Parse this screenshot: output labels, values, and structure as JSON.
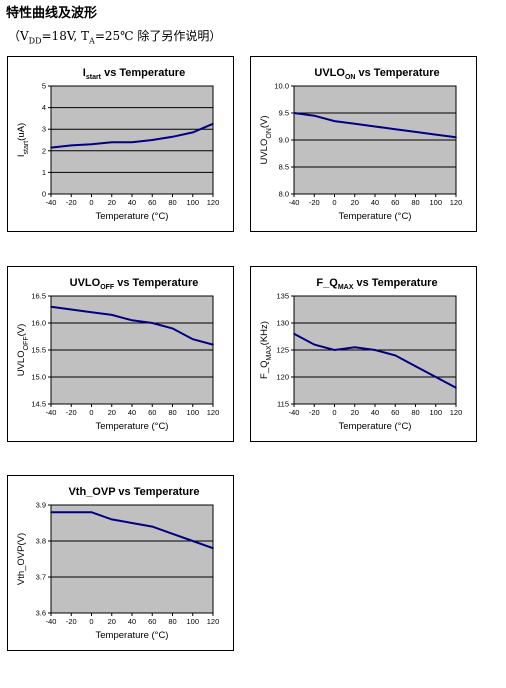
{
  "page": {
    "heading": "特性曲线及波形",
    "subheading": {
      "open": "（V",
      "vdd_sub": "DD",
      "mid": "=18V, T",
      "ta_sub": "A",
      "close": "=25℃  除了另作说明）"
    }
  },
  "colors": {
    "line": "#000080",
    "plot_bg": "#c0c0c0",
    "grid": "#000000"
  },
  "chart_data": [
    {
      "type": "line",
      "title": {
        "main": "I",
        "sub": "start",
        "rest": " vs Temperature"
      },
      "xlabel": "Temperature (°C)",
      "ylabel": {
        "main": "I",
        "sub": "start",
        "rest": "(uA)"
      },
      "x": [
        -40,
        -20,
        0,
        20,
        40,
        60,
        80,
        100,
        120
      ],
      "y": [
        2.15,
        2.25,
        2.3,
        2.4,
        2.4,
        2.5,
        2.65,
        2.85,
        3.25
      ],
      "xlim": [
        -40,
        120
      ],
      "ylim": [
        0,
        5
      ],
      "xticks": [
        "-40",
        "-20",
        "0",
        "20",
        "40",
        "60",
        "80",
        "100",
        "120"
      ],
      "yticks": [
        "0",
        "1",
        "2",
        "3",
        "4",
        "5"
      ],
      "grid": true
    },
    {
      "type": "line",
      "title": {
        "main": "UVLO",
        "sub": "ON",
        "rest": " vs Temperature"
      },
      "xlabel": "Temperature (°C)",
      "ylabel": {
        "main": "UVLO",
        "sub": "ON",
        "rest": "(V)"
      },
      "x": [
        -40,
        -20,
        0,
        20,
        40,
        60,
        80,
        100,
        120
      ],
      "y": [
        9.5,
        9.45,
        9.35,
        9.3,
        9.25,
        9.2,
        9.15,
        9.1,
        9.05
      ],
      "xlim": [
        -40,
        120
      ],
      "ylim": [
        8.0,
        10.0
      ],
      "xticks": [
        "-40",
        "-20",
        "0",
        "20",
        "40",
        "60",
        "80",
        "100",
        "120"
      ],
      "yticks": [
        "8.0",
        "8.5",
        "9.0",
        "9.5",
        "10.0"
      ],
      "grid": true
    },
    {
      "type": "line",
      "title": {
        "main": "UVLO",
        "sub": "OFF",
        "rest": " vs Temperature"
      },
      "xlabel": "Temperature (°C)",
      "ylabel": {
        "main": "UVLO",
        "sub": "OFF",
        "rest": "(V)"
      },
      "x": [
        -40,
        -20,
        0,
        20,
        40,
        60,
        80,
        100,
        120
      ],
      "y": [
        16.3,
        16.25,
        16.2,
        16.15,
        16.05,
        16.0,
        15.9,
        15.7,
        15.6
      ],
      "xlim": [
        -40,
        120
      ],
      "ylim": [
        14.5,
        16.5
      ],
      "xticks": [
        "-40",
        "-20",
        "0",
        "20",
        "40",
        "60",
        "80",
        "100",
        "120"
      ],
      "yticks": [
        "14.5",
        "15.0",
        "15.5",
        "16.0",
        "16.5"
      ],
      "grid": true
    },
    {
      "type": "line",
      "title": {
        "main": "F_Q",
        "sub": "MAX",
        "rest": " vs Temperature"
      },
      "xlabel": "Temperature (°C)",
      "ylabel": {
        "main": "F_Q",
        "sub": "MAX",
        "rest": "(KHz)"
      },
      "x": [
        -40,
        -20,
        0,
        20,
        40,
        60,
        80,
        100,
        120
      ],
      "y": [
        128,
        126,
        125,
        125.5,
        125,
        124,
        122,
        120,
        118
      ],
      "xlim": [
        -40,
        120
      ],
      "ylim": [
        115,
        135
      ],
      "xticks": [
        "-40",
        "-20",
        "0",
        "20",
        "40",
        "60",
        "80",
        "100",
        "120"
      ],
      "yticks": [
        "115",
        "120",
        "125",
        "130",
        "135"
      ],
      "grid": true
    },
    {
      "type": "line",
      "title": {
        "main": "Vth_OVP",
        "sub": "",
        "rest": " vs Temperature"
      },
      "xlabel": "Temperature (°C)",
      "ylabel": {
        "main": "Vth_OVP",
        "sub": "",
        "rest": "(V)"
      },
      "x": [
        -40,
        -20,
        0,
        20,
        40,
        60,
        80,
        100,
        120
      ],
      "y": [
        3.88,
        3.88,
        3.88,
        3.86,
        3.85,
        3.84,
        3.82,
        3.8,
        3.78
      ],
      "xlim": [
        -40,
        120
      ],
      "ylim": [
        3.6,
        3.9
      ],
      "xticks": [
        "-40",
        "-20",
        "0",
        "20",
        "40",
        "60",
        "80",
        "100",
        "120"
      ],
      "yticks": [
        "3.6",
        "3.7",
        "3.8",
        "3.9"
      ],
      "grid": true
    }
  ]
}
